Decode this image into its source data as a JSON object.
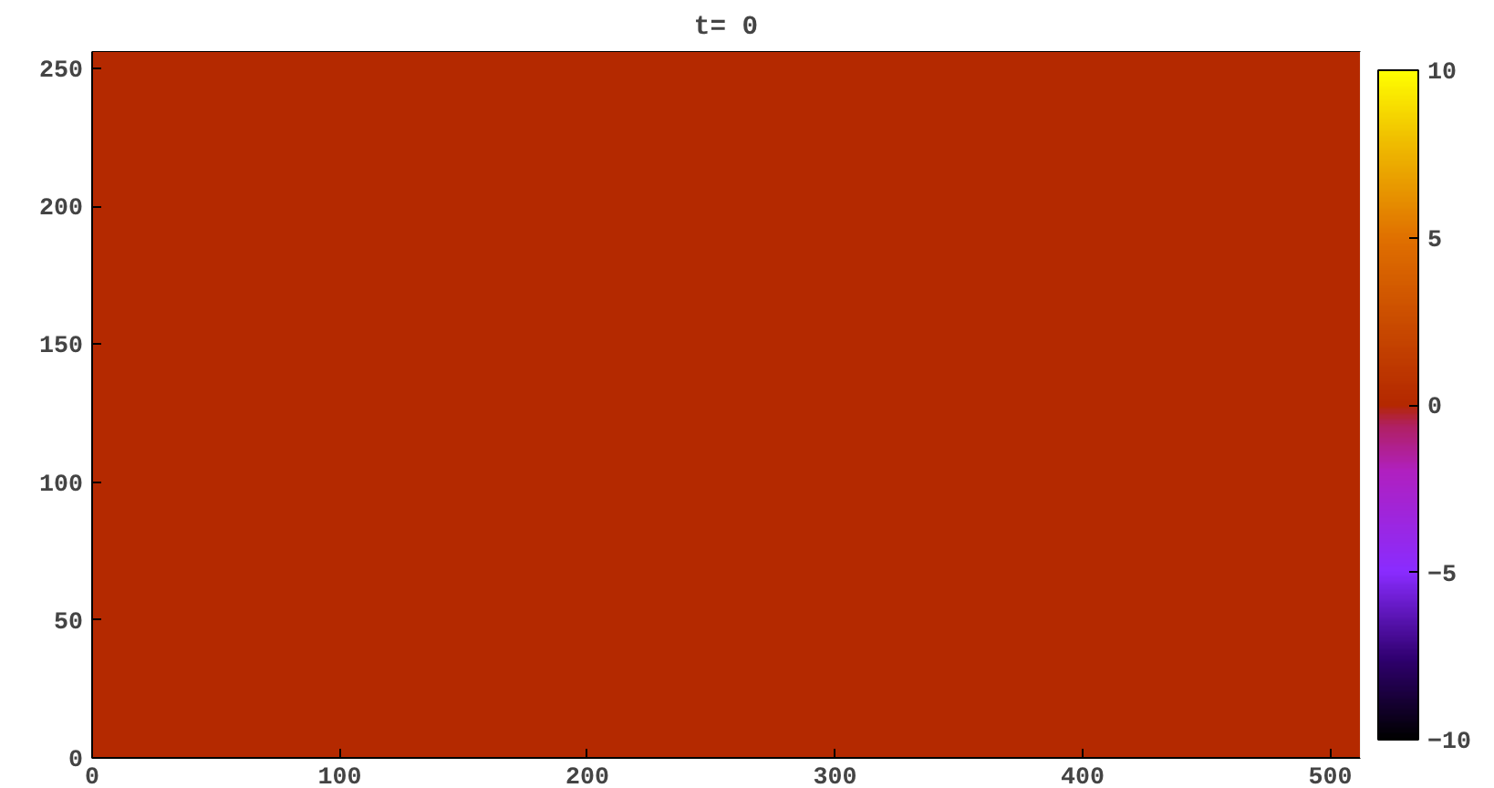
{
  "chart_data": {
    "type": "heatmap",
    "title": "t= 0",
    "xlim": [
      0,
      512
    ],
    "ylim": [
      0,
      256
    ],
    "xticks": [
      0,
      100,
      200,
      300,
      400,
      500
    ],
    "yticks": [
      0,
      50,
      100,
      150,
      200,
      250
    ],
    "cells": [
      [
        0
      ]
    ],
    "clim": [
      -10,
      10
    ],
    "cticks": [
      -10,
      -5,
      0,
      5,
      10
    ]
  }
}
